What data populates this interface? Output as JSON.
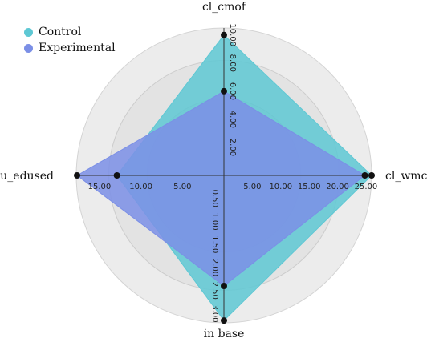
{
  "chart_data": {
    "type": "radar",
    "axes": [
      "cl_cmof",
      "cl_wmc",
      "in base",
      "cu_edused"
    ],
    "axis_max": [
      10.5,
      26.0,
      3.2,
      17.8
    ],
    "ticks": {
      "cl_cmof": [
        "2.00",
        "4.00",
        "6.00",
        "8.00",
        "10.00"
      ],
      "cl_wmc": [
        "5.00",
        "10.00",
        "15.00",
        "20.00",
        "25.00"
      ],
      "in base": [
        "0.50",
        "1.00",
        "1.50",
        "2.00",
        "2.50",
        "3.00"
      ],
      "cu_edused": [
        "5.00",
        "10.00",
        "15.00"
      ]
    },
    "tick_values": {
      "cl_cmof": [
        2,
        4,
        6,
        8,
        10
      ],
      "cl_wmc": [
        5,
        10,
        15,
        20,
        25
      ],
      "in base": [
        0.5,
        1.0,
        1.5,
        2.0,
        2.5,
        3.0
      ],
      "cu_edused": [
        5,
        10,
        15
      ]
    },
    "series": [
      {
        "name": "Control",
        "color": "#5ec8d4",
        "values": [
          10.0,
          26.0,
          3.15,
          12.9
        ]
      },
      {
        "name": "Experimental",
        "color": "#7b8fe6",
        "values": [
          6.0,
          24.8,
          2.4,
          17.7
        ]
      }
    ],
    "grid": "concentric-bands",
    "legend_position": "top-left"
  }
}
